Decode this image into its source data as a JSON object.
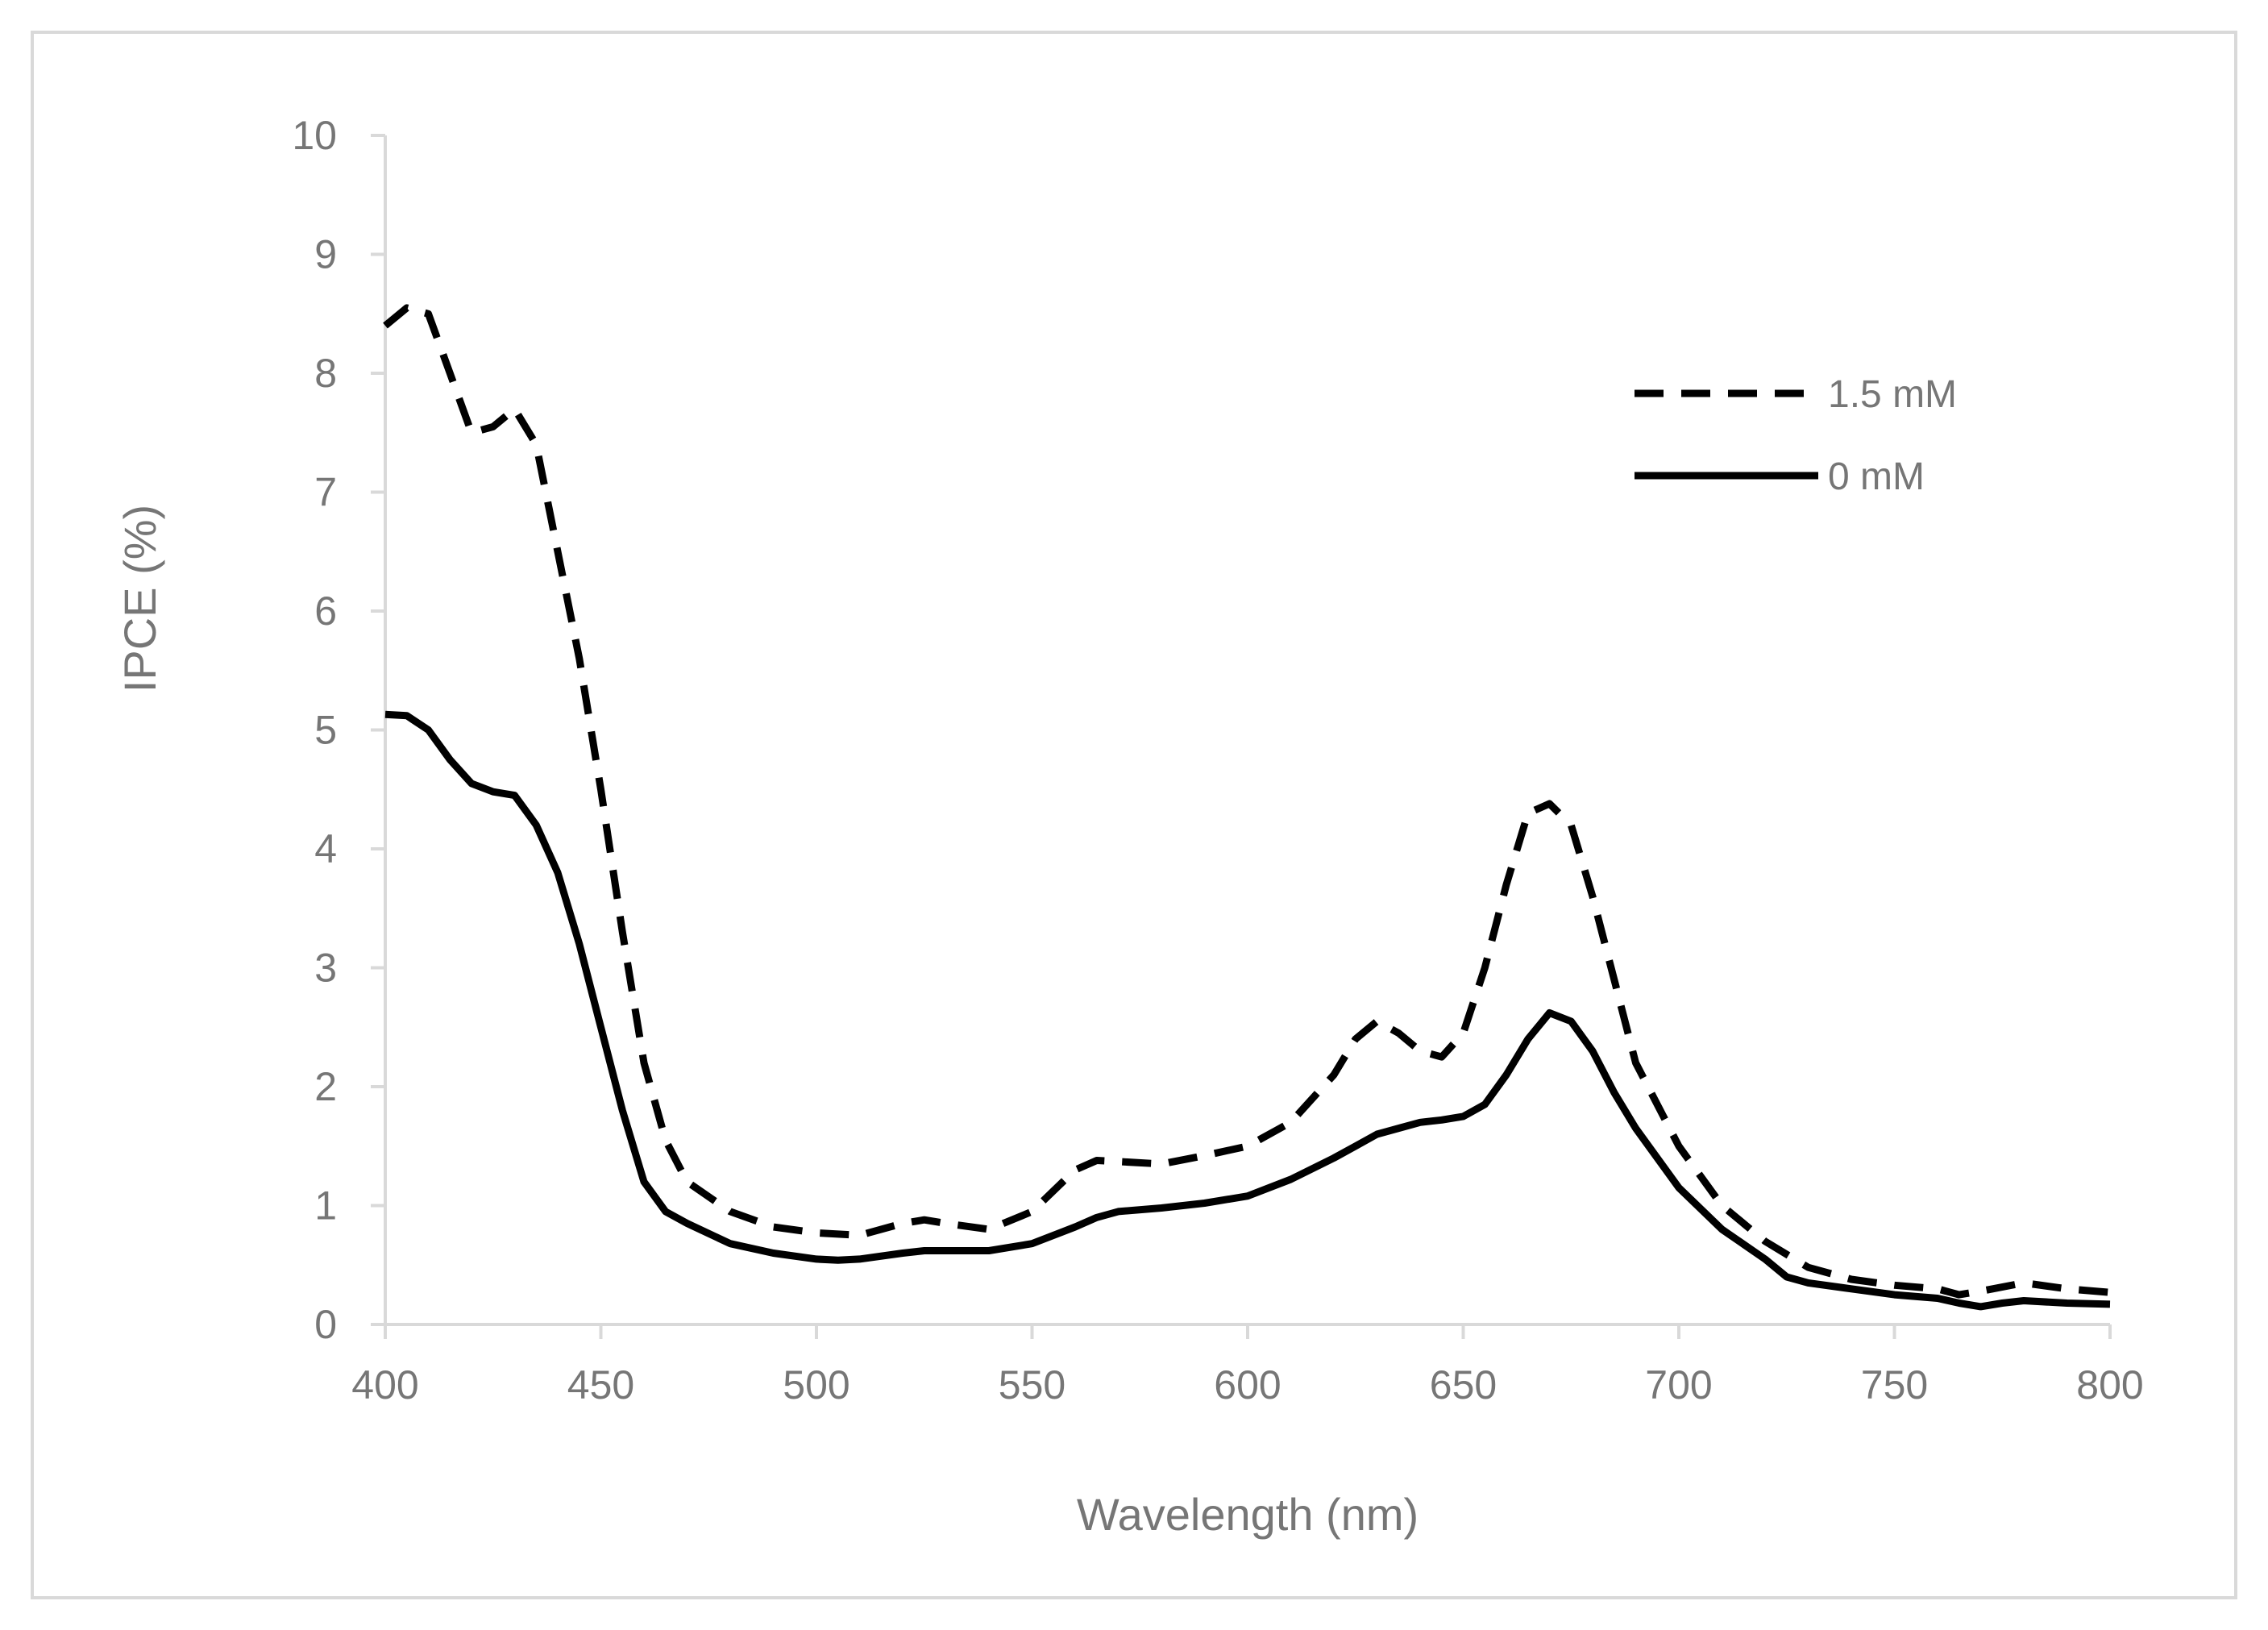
{
  "chart_data": {
    "type": "line",
    "title": "",
    "xlabel": "Wavelength (nm)",
    "ylabel": "IPCE (%)",
    "xlim": [
      400,
      800
    ],
    "ylim": [
      0,
      10
    ],
    "xticks": [
      400,
      450,
      500,
      550,
      600,
      650,
      700,
      750,
      800
    ],
    "yticks": [
      0,
      1,
      2,
      3,
      4,
      5,
      6,
      7,
      8,
      9,
      10
    ],
    "grid": false,
    "legend_position": "top-right",
    "series": [
      {
        "name": "1.5 mM",
        "style": "dashed",
        "color": "#000000",
        "x": [
          400,
          405,
          410,
          415,
          420,
          425,
          430,
          435,
          440,
          445,
          450,
          455,
          460,
          465,
          470,
          480,
          490,
          500,
          510,
          520,
          525,
          530,
          540,
          550,
          560,
          565,
          570,
          580,
          590,
          600,
          610,
          620,
          625,
          630,
          635,
          640,
          645,
          650,
          655,
          660,
          665,
          670,
          675,
          680,
          685,
          690,
          700,
          710,
          720,
          730,
          740,
          750,
          760,
          765,
          770,
          780,
          790,
          800
        ],
        "y": [
          8.4,
          8.55,
          8.5,
          8.0,
          7.5,
          7.55,
          7.7,
          7.4,
          6.5,
          5.6,
          4.5,
          3.3,
          2.2,
          1.55,
          1.2,
          0.95,
          0.82,
          0.77,
          0.75,
          0.85,
          0.88,
          0.85,
          0.8,
          0.95,
          1.3,
          1.38,
          1.37,
          1.35,
          1.42,
          1.5,
          1.7,
          2.1,
          2.4,
          2.55,
          2.45,
          2.3,
          2.25,
          2.45,
          3.0,
          3.7,
          4.3,
          4.38,
          4.2,
          3.6,
          2.9,
          2.2,
          1.5,
          1.0,
          0.7,
          0.48,
          0.38,
          0.33,
          0.3,
          0.25,
          0.28,
          0.35,
          0.3,
          0.27
        ]
      },
      {
        "name": "0 mM",
        "style": "solid",
        "color": "#000000",
        "x": [
          400,
          405,
          410,
          415,
          420,
          425,
          430,
          435,
          440,
          445,
          450,
          455,
          460,
          465,
          470,
          480,
          490,
          500,
          505,
          510,
          520,
          525,
          530,
          540,
          550,
          560,
          565,
          570,
          580,
          590,
          600,
          610,
          620,
          625,
          630,
          635,
          640,
          645,
          650,
          655,
          660,
          665,
          670,
          675,
          680,
          685,
          690,
          700,
          710,
          720,
          725,
          730,
          740,
          750,
          760,
          765,
          770,
          775,
          780,
          790,
          800
        ],
        "y": [
          5.13,
          5.12,
          5.0,
          4.75,
          4.55,
          4.48,
          4.45,
          4.2,
          3.8,
          3.2,
          2.5,
          1.8,
          1.2,
          0.95,
          0.85,
          0.68,
          0.6,
          0.55,
          0.54,
          0.55,
          0.6,
          0.62,
          0.62,
          0.62,
          0.68,
          0.82,
          0.9,
          0.95,
          0.98,
          1.02,
          1.08,
          1.22,
          1.4,
          1.5,
          1.6,
          1.65,
          1.7,
          1.72,
          1.75,
          1.85,
          2.1,
          2.4,
          2.62,
          2.55,
          2.3,
          1.95,
          1.65,
          1.15,
          0.8,
          0.55,
          0.4,
          0.35,
          0.3,
          0.25,
          0.22,
          0.18,
          0.15,
          0.18,
          0.2,
          0.18,
          0.17
        ]
      }
    ]
  }
}
